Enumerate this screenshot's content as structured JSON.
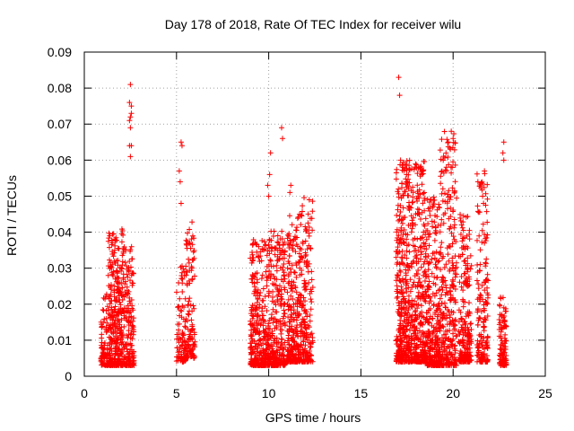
{
  "chart_data": {
    "type": "scatter",
    "title": "Day 178 of 2018, Rate Of TEC Index for receiver wilu",
    "xlabel": "GPS time / hours",
    "ylabel": "ROTI / TECUs",
    "xlim": [
      0,
      25
    ],
    "ylim": [
      0,
      0.09
    ],
    "xticks": [
      "0",
      "5",
      "10",
      "15",
      "20",
      "25"
    ],
    "xtick_values": [
      0,
      5,
      10,
      15,
      20,
      25
    ],
    "yticks": [
      "0",
      "0.01",
      "0.02",
      "0.03",
      "0.04",
      "0.05",
      "0.06",
      "0.07",
      "0.08",
      "0.09"
    ],
    "ytick_values": [
      0,
      0.01,
      0.02,
      0.03,
      0.04,
      0.05,
      0.06,
      0.07,
      0.08,
      0.09
    ],
    "grid": true,
    "marker": "+",
    "color": "#ff0000",
    "clusters": [
      {
        "x_range": [
          0.9,
          1.3
        ],
        "y_range": [
          0.003,
          0.024
        ],
        "n": 80
      },
      {
        "x_range": [
          1.3,
          2.1
        ],
        "y_range": [
          0.003,
          0.041
        ],
        "n": 320
      },
      {
        "x_range": [
          2.1,
          2.7
        ],
        "y_range": [
          0.003,
          0.036
        ],
        "n": 180
      },
      {
        "x_range": [
          5.0,
          5.5
        ],
        "y_range": [
          0.004,
          0.031
        ],
        "n": 90
      },
      {
        "x_range": [
          5.5,
          6.0
        ],
        "y_range": [
          0.005,
          0.043
        ],
        "n": 110
      },
      {
        "x_range": [
          9.0,
          10.0
        ],
        "y_range": [
          0.003,
          0.038
        ],
        "n": 320
      },
      {
        "x_range": [
          10.0,
          10.9
        ],
        "y_range": [
          0.003,
          0.041
        ],
        "n": 280
      },
      {
        "x_range": [
          11.0,
          11.8
        ],
        "y_range": [
          0.004,
          0.046
        ],
        "n": 280
      },
      {
        "x_range": [
          11.8,
          12.4
        ],
        "y_range": [
          0.004,
          0.05
        ],
        "n": 160
      },
      {
        "x_range": [
          16.9,
          17.6
        ],
        "y_range": [
          0.004,
          0.06
        ],
        "n": 330
      },
      {
        "x_range": [
          17.6,
          18.5
        ],
        "y_range": [
          0.004,
          0.06
        ],
        "n": 360
      },
      {
        "x_range": [
          18.5,
          19.3
        ],
        "y_range": [
          0.003,
          0.05
        ],
        "n": 300
      },
      {
        "x_range": [
          19.3,
          20.2
        ],
        "y_range": [
          0.003,
          0.068
        ],
        "n": 300
      },
      {
        "x_range": [
          20.3,
          21.0
        ],
        "y_range": [
          0.004,
          0.045
        ],
        "n": 220
      },
      {
        "x_range": [
          21.3,
          21.9
        ],
        "y_range": [
          0.004,
          0.057
        ],
        "n": 170
      },
      {
        "x_range": [
          22.5,
          22.9
        ],
        "y_range": [
          0.003,
          0.022
        ],
        "n": 110
      }
    ],
    "outliers": [
      {
        "x": 2.5,
        "y": 0.081
      },
      {
        "x": 2.45,
        "y": 0.076
      },
      {
        "x": 2.55,
        "y": 0.075
      },
      {
        "x": 2.5,
        "y": 0.072
      },
      {
        "x": 2.45,
        "y": 0.071
      },
      {
        "x": 2.55,
        "y": 0.073
      },
      {
        "x": 2.5,
        "y": 0.069
      },
      {
        "x": 2.45,
        "y": 0.064
      },
      {
        "x": 2.55,
        "y": 0.064
      },
      {
        "x": 2.5,
        "y": 0.061
      },
      {
        "x": 5.3,
        "y": 0.064
      },
      {
        "x": 5.25,
        "y": 0.065
      },
      {
        "x": 5.15,
        "y": 0.057
      },
      {
        "x": 5.2,
        "y": 0.054
      },
      {
        "x": 5.25,
        "y": 0.048
      },
      {
        "x": 10.1,
        "y": 0.062
      },
      {
        "x": 10.05,
        "y": 0.056
      },
      {
        "x": 9.95,
        "y": 0.053
      },
      {
        "x": 10.0,
        "y": 0.05
      },
      {
        "x": 10.7,
        "y": 0.069
      },
      {
        "x": 10.75,
        "y": 0.066
      },
      {
        "x": 11.2,
        "y": 0.053
      },
      {
        "x": 11.15,
        "y": 0.051
      },
      {
        "x": 12.2,
        "y": 0.049
      },
      {
        "x": 17.05,
        "y": 0.083
      },
      {
        "x": 17.1,
        "y": 0.078
      },
      {
        "x": 17.15,
        "y": 0.06
      },
      {
        "x": 17.3,
        "y": 0.058
      },
      {
        "x": 18.2,
        "y": 0.058
      },
      {
        "x": 18.3,
        "y": 0.056
      },
      {
        "x": 19.9,
        "y": 0.068
      },
      {
        "x": 20.0,
        "y": 0.066
      },
      {
        "x": 19.85,
        "y": 0.063
      },
      {
        "x": 19.95,
        "y": 0.058
      },
      {
        "x": 21.7,
        "y": 0.057
      },
      {
        "x": 21.6,
        "y": 0.05
      },
      {
        "x": 21.65,
        "y": 0.048
      },
      {
        "x": 21.7,
        "y": 0.037
      },
      {
        "x": 22.75,
        "y": 0.065
      },
      {
        "x": 22.7,
        "y": 0.062
      },
      {
        "x": 22.75,
        "y": 0.06
      }
    ]
  }
}
